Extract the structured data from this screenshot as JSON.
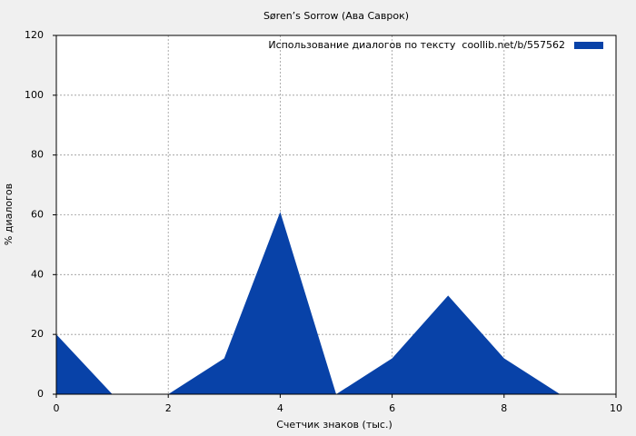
{
  "chart_data": {
    "type": "area",
    "title": "Søren’s Sorrow (Ава Саврок)",
    "x_label": "Счетчик знаков (тыс.)",
    "y_label": "% диалогов",
    "x": [
      0,
      1,
      2,
      3,
      4,
      5,
      6,
      7,
      8,
      9,
      10
    ],
    "series": [
      {
        "name": "Использование диалогов по тексту  coollib.net/b/557562",
        "color": "#0842a8",
        "values": [
          20,
          0,
          0,
          12,
          61,
          0,
          12,
          33,
          12,
          0,
          0
        ]
      }
    ],
    "xlim": [
      0,
      10
    ],
    "xticks": [
      0,
      2,
      4,
      6,
      8,
      10
    ],
    "ylim": [
      0,
      120
    ],
    "yticks": [
      0,
      20,
      40,
      60,
      80,
      100,
      120
    ],
    "grid": true,
    "legend": "top-right"
  }
}
